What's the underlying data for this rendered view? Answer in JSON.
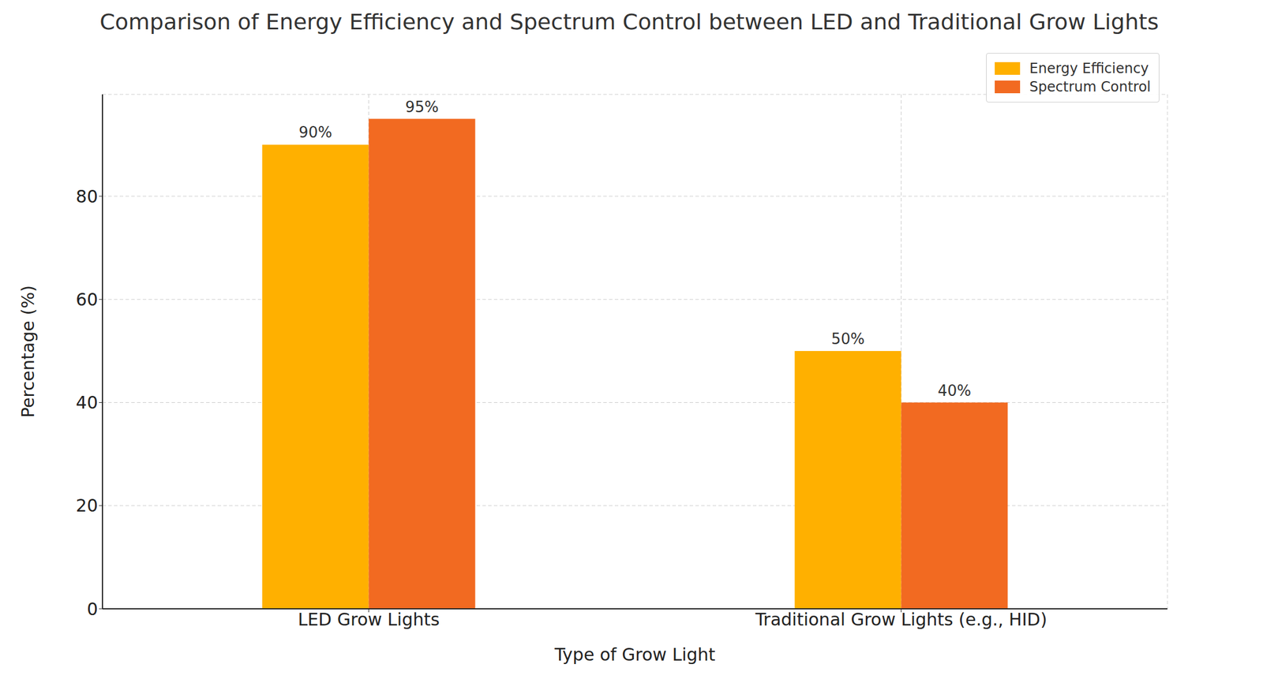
{
  "chart_data": {
    "type": "bar",
    "title": "Comparison of Energy Efficiency and Spectrum Control between LED and Traditional Grow Lights",
    "x_label": "Type of Grow Light",
    "y_label": "Percentage (%)",
    "categories": [
      "LED Grow Lights",
      "Traditional Grow Lights (e.g., HID)"
    ],
    "series": [
      {
        "name": "Energy Efficiency",
        "color": "#ffb000",
        "values": [
          90,
          50
        ],
        "value_labels": [
          "90%",
          "50%"
        ]
      },
      {
        "name": "Spectrum Control",
        "color": "#f26a21",
        "values": [
          95,
          40
        ],
        "value_labels": [
          "95%",
          "40%"
        ]
      }
    ],
    "ylim": [
      0,
      99.75
    ],
    "yticks": [
      0,
      20,
      40,
      60,
      80
    ],
    "grid": true,
    "legend": "upper right",
    "data_labels": true
  }
}
